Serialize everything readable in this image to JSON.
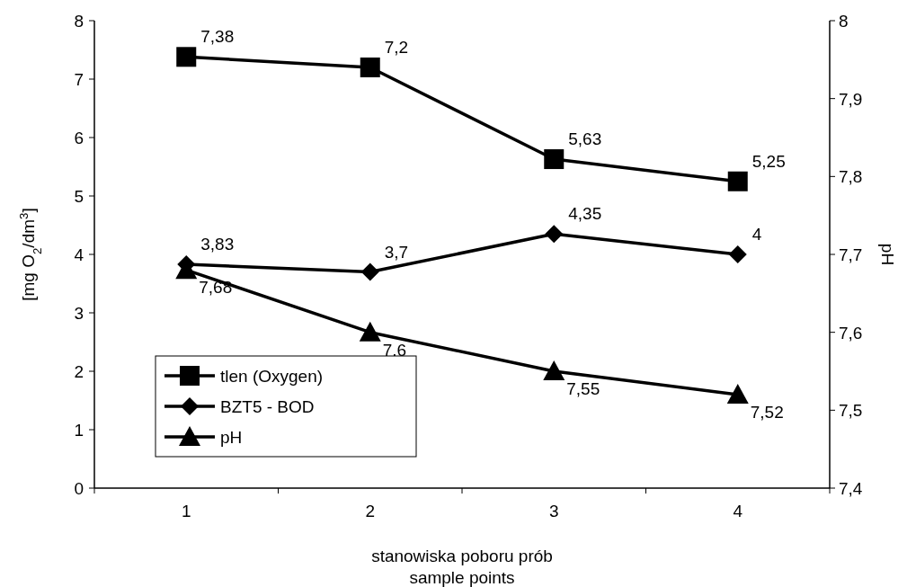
{
  "chart_data": {
    "type": "line",
    "xlabel": "stanowiska poboru prób\nsample points",
    "ylabel": "[mg O$_{2}$/dm$^{3}$]",
    "y2label": "pH",
    "categories": [
      "1",
      "2",
      "3",
      "4"
    ],
    "ylim": [
      0,
      8
    ],
    "yticks": [
      0,
      1,
      2,
      3,
      4,
      5,
      6,
      7,
      8
    ],
    "y2lim": [
      7.4,
      8
    ],
    "y2ticks": [
      {
        "value": 7.4,
        "label": "7,4"
      },
      {
        "value": 7.5,
        "label": "7,5"
      },
      {
        "value": 7.6,
        "label": "7,6"
      },
      {
        "value": 7.7,
        "label": "7,7"
      },
      {
        "value": 7.8,
        "label": "7,8"
      },
      {
        "value": 7.9,
        "label": "7,9"
      },
      {
        "value": 8,
        "label": "8"
      }
    ],
    "grid": false,
    "legend": "bottom left",
    "line_style": "solid",
    "series": [
      {
        "name": "tlen (Oxygen)",
        "color": "#000000",
        "marker": "square",
        "values": [
          7.38,
          7.2,
          5.63,
          5.25
        ],
        "value_labels": [
          "7,38",
          "7,2",
          "5,63",
          "5,25"
        ]
      },
      {
        "name": "BZT5 - BOD",
        "color": "#000000",
        "marker": "diamond",
        "values": [
          3.83,
          3.7,
          4.35,
          4
        ],
        "value_labels": [
          "3,83",
          "3,7",
          "4,35",
          "4"
        ]
      },
      {
        "name": "pH",
        "color": "#000000",
        "marker": "triangle",
        "axis": "y2",
        "values": [
          7.68,
          7.6,
          7.55,
          7.52
        ],
        "value_labels": [
          "7,68",
          "7,6",
          "7,55",
          "7,52"
        ]
      }
    ]
  }
}
